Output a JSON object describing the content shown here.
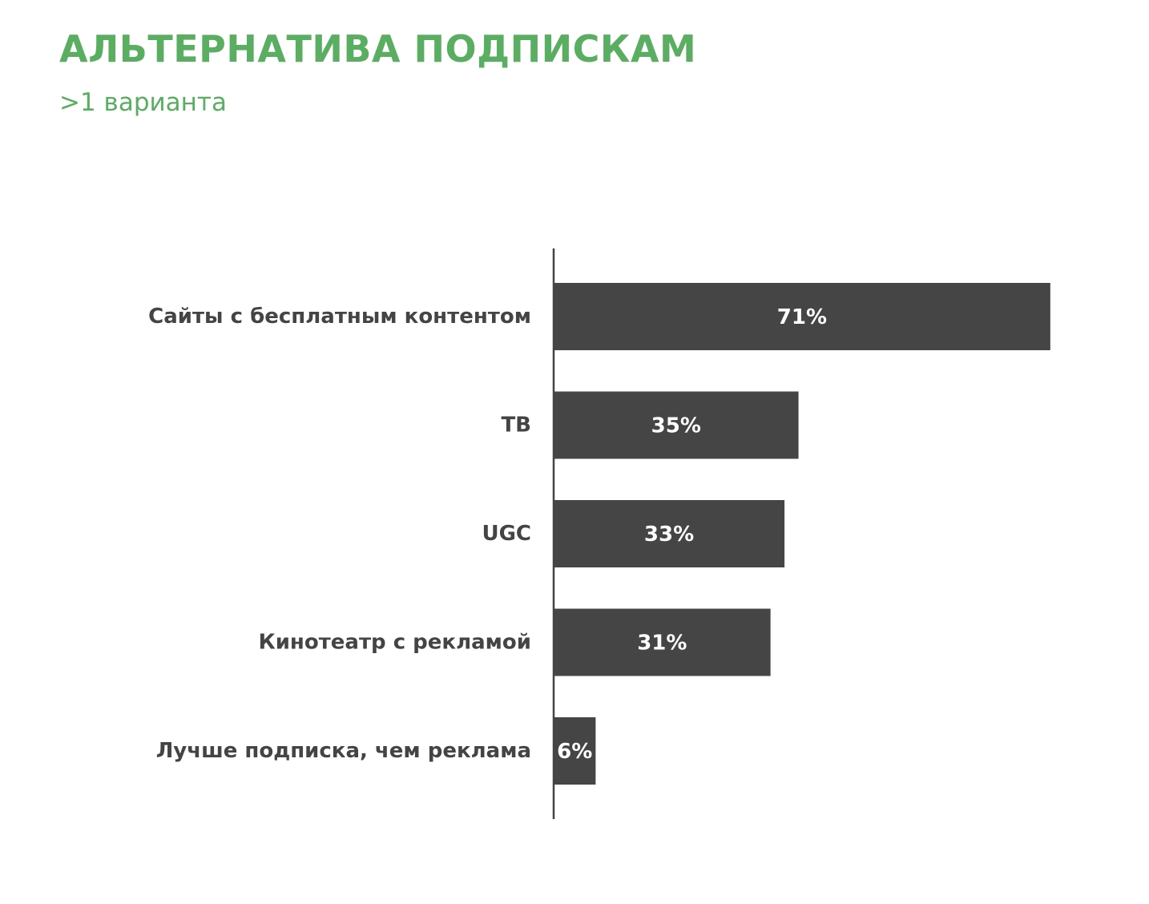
{
  "title": "АЛЬТЕРНАТИВА ПОДПИСКАМ",
  "subtitle": ">1 варианта",
  "colors": {
    "accent": "#5aae61",
    "bar": "#454545",
    "axis": "#444444",
    "label": "#444444",
    "value_label": "#ffffff"
  },
  "chart_data": {
    "type": "bar",
    "orientation": "horizontal",
    "categories": [
      "Сайты с бесплатным контентом",
      "ТВ",
      "UGC",
      "Кинотеатр с рекламой",
      "Лучше подписка, чем реклама"
    ],
    "values": [
      71,
      35,
      33,
      31,
      6
    ],
    "value_labels": [
      "71%",
      "35%",
      "33%",
      "31%",
      "6%"
    ],
    "unit": "%",
    "title": "АЛЬТЕРНАТИВА ПОДПИСКАМ",
    "subtitle": ">1 варианта",
    "xlabel": "",
    "ylabel": "",
    "xlim": [
      0,
      100
    ],
    "grid": false,
    "legend": "none"
  }
}
